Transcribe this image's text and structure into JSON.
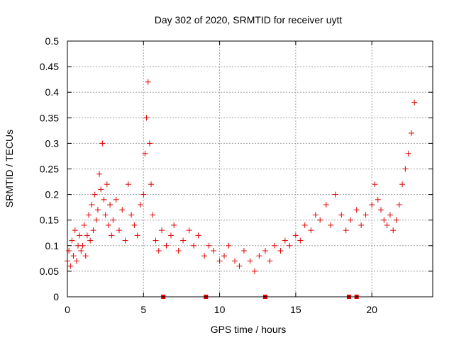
{
  "chart_data": {
    "type": "scatter",
    "title": "Day 302 of 2020, SRMTID for receiver uytt",
    "xlabel": "GPS time / hours",
    "ylabel": "SRMTID / TECUs",
    "xlim": [
      0,
      24.0
    ],
    "ylim": [
      0,
      0.5
    ],
    "xticks": [
      0,
      5,
      10,
      15,
      20
    ],
    "xtick_labels": [
      "0",
      "5",
      "10",
      "15",
      "20"
    ],
    "yticks": [
      0,
      0.05,
      0.1,
      0.15,
      0.2,
      0.25,
      0.3,
      0.35,
      0.4,
      0.45,
      0.5
    ],
    "ytick_labels": [
      "0",
      "0.05",
      "0.1",
      "0.15",
      "0.2",
      "0.25",
      "0.3",
      "0.35",
      "0.4",
      "0.45",
      "0.5"
    ],
    "grid": true,
    "marker": "plus",
    "color": "#e00000",
    "series": [
      {
        "name": "SRMTID",
        "x": [
          0.0,
          0.1,
          0.2,
          0.3,
          0.4,
          0.5,
          0.6,
          0.7,
          0.8,
          0.9,
          1.0,
          1.1,
          1.2,
          1.3,
          1.4,
          1.5,
          1.6,
          1.7,
          1.8,
          1.9,
          2.0,
          2.1,
          2.2,
          2.3,
          2.4,
          2.5,
          2.6,
          2.7,
          2.8,
          2.9,
          3.0,
          3.2,
          3.4,
          3.6,
          3.8,
          4.0,
          4.2,
          4.4,
          4.6,
          4.8,
          5.0,
          5.1,
          5.2,
          5.3,
          5.4,
          5.5,
          5.6,
          5.8,
          6.0,
          6.2,
          6.5,
          6.8,
          7.0,
          7.3,
          7.6,
          8.0,
          8.3,
          8.6,
          9.0,
          9.3,
          9.6,
          10.0,
          10.3,
          10.6,
          11.0,
          11.3,
          11.6,
          12.0,
          12.3,
          12.6,
          13.0,
          13.3,
          13.6,
          14.0,
          14.3,
          14.6,
          15.0,
          15.3,
          15.6,
          16.0,
          16.3,
          16.6,
          17.0,
          17.3,
          17.6,
          18.0,
          18.3,
          18.6,
          19.0,
          19.3,
          19.6,
          20.0,
          20.2,
          20.4,
          20.6,
          20.8,
          21.0,
          21.2,
          21.4,
          21.6,
          21.8,
          22.0,
          22.2,
          22.4,
          22.6,
          22.8
        ],
        "y": [
          0.07,
          0.09,
          0.06,
          0.11,
          0.08,
          0.13,
          0.07,
          0.1,
          0.12,
          0.09,
          0.1,
          0.14,
          0.08,
          0.12,
          0.16,
          0.11,
          0.18,
          0.13,
          0.2,
          0.15,
          0.17,
          0.24,
          0.21,
          0.3,
          0.19,
          0.16,
          0.22,
          0.14,
          0.18,
          0.12,
          0.15,
          0.19,
          0.13,
          0.17,
          0.11,
          0.22,
          0.16,
          0.14,
          0.12,
          0.18,
          0.2,
          0.28,
          0.35,
          0.42,
          0.3,
          0.22,
          0.16,
          0.11,
          0.09,
          0.13,
          0.1,
          0.12,
          0.14,
          0.09,
          0.11,
          0.13,
          0.1,
          0.12,
          0.08,
          0.1,
          0.09,
          0.07,
          0.08,
          0.1,
          0.07,
          0.06,
          0.09,
          0.07,
          0.05,
          0.08,
          0.09,
          0.07,
          0.1,
          0.09,
          0.11,
          0.1,
          0.12,
          0.11,
          0.14,
          0.13,
          0.16,
          0.15,
          0.18,
          0.14,
          0.2,
          0.16,
          0.13,
          0.15,
          0.17,
          0.14,
          0.16,
          0.18,
          0.22,
          0.19,
          0.17,
          0.15,
          0.14,
          0.16,
          0.13,
          0.15,
          0.18,
          0.22,
          0.25,
          0.28,
          0.32,
          0.38
        ]
      }
    ],
    "gap_marks_x": [
      6.3,
      9.1,
      13.0,
      18.5,
      19.0
    ]
  }
}
